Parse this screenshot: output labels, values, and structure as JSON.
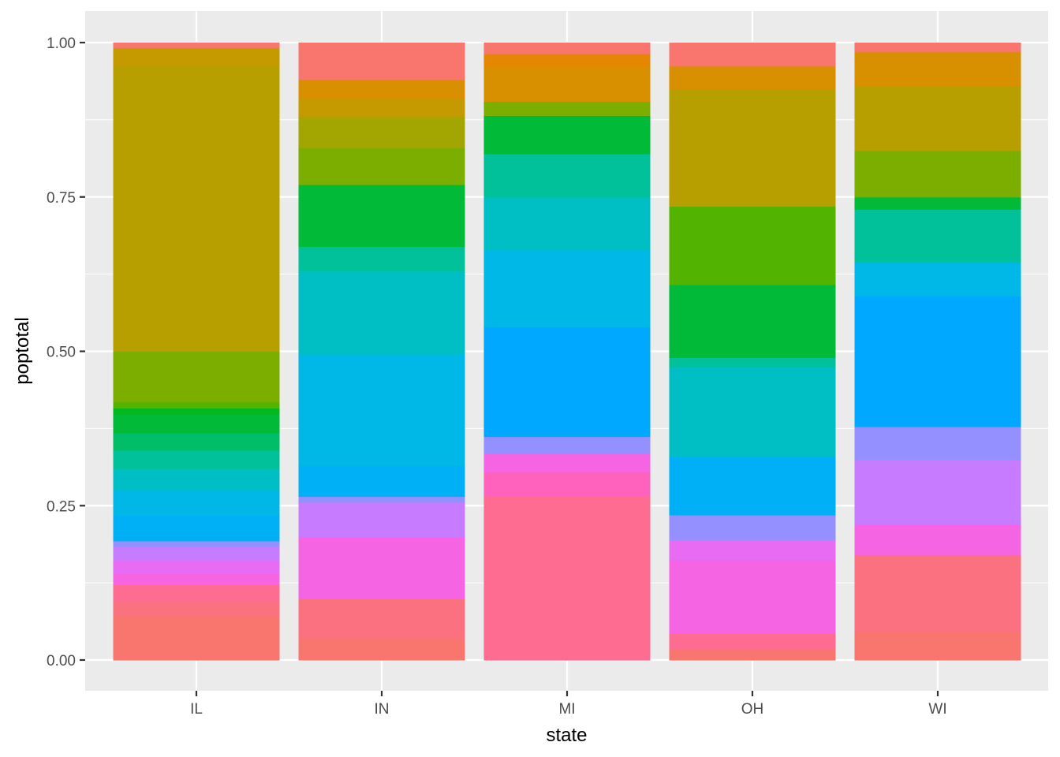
{
  "chart_data": {
    "type": "bar",
    "stacked": "fill",
    "xlabel": "state",
    "ylabel": "poptotal",
    "ylim": [
      0,
      1
    ],
    "y_ticks": [
      "0.00",
      "0.25",
      "0.50",
      "0.75",
      "1.00"
    ],
    "y_tick_values": [
      0,
      0.25,
      0.5,
      0.75,
      1
    ],
    "categories": [
      "IL",
      "IN",
      "MI",
      "OH",
      "WI"
    ],
    "grid": true,
    "legend": "none",
    "colors": {
      "panel": "#ebebeb",
      "grid": "#ffffff",
      "tick_text": "#4d4d4d",
      "axis_title": "#000000"
    },
    "stacks": [
      {
        "category": "IL",
        "segments": [
          {
            "y0": 0.0,
            "y1": 0.03,
            "color": "#f8766d"
          },
          {
            "y0": 0.03,
            "y1": 0.072,
            "color": "#f8766d"
          },
          {
            "y0": 0.072,
            "y1": 0.095,
            "color": "#fc717f"
          },
          {
            "y0": 0.095,
            "y1": 0.122,
            "color": "#ff6c91"
          },
          {
            "y0": 0.122,
            "y1": 0.14,
            "color": "#f564e3"
          },
          {
            "y0": 0.14,
            "y1": 0.162,
            "color": "#e76bf3"
          },
          {
            "y0": 0.162,
            "y1": 0.184,
            "color": "#c77cff"
          },
          {
            "y0": 0.184,
            "y1": 0.193,
            "color": "#9590ff"
          },
          {
            "y0": 0.193,
            "y1": 0.235,
            "color": "#00b0f6"
          },
          {
            "y0": 0.235,
            "y1": 0.275,
            "color": "#00b8e7"
          },
          {
            "y0": 0.275,
            "y1": 0.31,
            "color": "#00bfc4"
          },
          {
            "y0": 0.31,
            "y1": 0.34,
            "color": "#00c19a"
          },
          {
            "y0": 0.34,
            "y1": 0.368,
            "color": "#00be67"
          },
          {
            "y0": 0.368,
            "y1": 0.398,
            "color": "#00ba38"
          },
          {
            "y0": 0.398,
            "y1": 0.408,
            "color": "#00b81f"
          },
          {
            "y0": 0.408,
            "y1": 0.418,
            "color": "#53b400"
          },
          {
            "y0": 0.418,
            "y1": 0.5,
            "color": "#7cae00"
          },
          {
            "y0": 0.5,
            "y1": 0.962,
            "color": "#b79f00"
          },
          {
            "y0": 0.962,
            "y1": 0.992,
            "color": "#c49a00"
          },
          {
            "y0": 0.992,
            "y1": 1.0,
            "color": "#f8766d"
          }
        ]
      },
      {
        "category": "IN",
        "segments": [
          {
            "y0": 0.0,
            "y1": 0.035,
            "color": "#f8766d"
          },
          {
            "y0": 0.035,
            "y1": 0.1,
            "color": "#fc717f"
          },
          {
            "y0": 0.1,
            "y1": 0.2,
            "color": "#f564e3"
          },
          {
            "y0": 0.2,
            "y1": 0.255,
            "color": "#c77cff"
          },
          {
            "y0": 0.255,
            "y1": 0.265,
            "color": "#9590ff"
          },
          {
            "y0": 0.265,
            "y1": 0.315,
            "color": "#00b0f6"
          },
          {
            "y0": 0.315,
            "y1": 0.495,
            "color": "#00b8e7"
          },
          {
            "y0": 0.495,
            "y1": 0.63,
            "color": "#00bfc4"
          },
          {
            "y0": 0.63,
            "y1": 0.67,
            "color": "#00c19a"
          },
          {
            "y0": 0.67,
            "y1": 0.77,
            "color": "#00ba38"
          },
          {
            "y0": 0.77,
            "y1": 0.83,
            "color": "#7cae00"
          },
          {
            "y0": 0.83,
            "y1": 0.88,
            "color": "#a3a500"
          },
          {
            "y0": 0.88,
            "y1": 0.91,
            "color": "#c49a00"
          },
          {
            "y0": 0.91,
            "y1": 0.94,
            "color": "#d89000"
          },
          {
            "y0": 0.94,
            "y1": 1.0,
            "color": "#f8766d"
          }
        ]
      },
      {
        "category": "MI",
        "segments": [
          {
            "y0": 0.0,
            "y1": 0.265,
            "color": "#ff6c91"
          },
          {
            "y0": 0.265,
            "y1": 0.305,
            "color": "#ff62bc"
          },
          {
            "y0": 0.305,
            "y1": 0.335,
            "color": "#f564e3"
          },
          {
            "y0": 0.335,
            "y1": 0.362,
            "color": "#9590ff"
          },
          {
            "y0": 0.362,
            "y1": 0.54,
            "color": "#00a9ff"
          },
          {
            "y0": 0.54,
            "y1": 0.665,
            "color": "#00b8e7"
          },
          {
            "y0": 0.665,
            "y1": 0.75,
            "color": "#00bfc4"
          },
          {
            "y0": 0.75,
            "y1": 0.82,
            "color": "#00c19a"
          },
          {
            "y0": 0.82,
            "y1": 0.882,
            "color": "#00ba38"
          },
          {
            "y0": 0.882,
            "y1": 0.905,
            "color": "#7cae00"
          },
          {
            "y0": 0.905,
            "y1": 0.96,
            "color": "#d89000"
          },
          {
            "y0": 0.96,
            "y1": 0.982,
            "color": "#e58700"
          },
          {
            "y0": 0.982,
            "y1": 1.0,
            "color": "#f8766d"
          }
        ]
      },
      {
        "category": "OH",
        "segments": [
          {
            "y0": 0.0,
            "y1": 0.018,
            "color": "#f8766d"
          },
          {
            "y0": 0.018,
            "y1": 0.043,
            "color": "#ff6c91"
          },
          {
            "y0": 0.043,
            "y1": 0.162,
            "color": "#f564e3"
          },
          {
            "y0": 0.162,
            "y1": 0.195,
            "color": "#e76bf3"
          },
          {
            "y0": 0.195,
            "y1": 0.235,
            "color": "#9590ff"
          },
          {
            "y0": 0.235,
            "y1": 0.33,
            "color": "#00b0f6"
          },
          {
            "y0": 0.33,
            "y1": 0.475,
            "color": "#00bfc4"
          },
          {
            "y0": 0.475,
            "y1": 0.49,
            "color": "#00c19a"
          },
          {
            "y0": 0.49,
            "y1": 0.608,
            "color": "#00ba38"
          },
          {
            "y0": 0.608,
            "y1": 0.735,
            "color": "#53b400"
          },
          {
            "y0": 0.735,
            "y1": 0.925,
            "color": "#b79f00"
          },
          {
            "y0": 0.925,
            "y1": 0.962,
            "color": "#d89000"
          },
          {
            "y0": 0.962,
            "y1": 1.0,
            "color": "#f8766d"
          }
        ]
      },
      {
        "category": "WI",
        "segments": [
          {
            "y0": 0.0,
            "y1": 0.045,
            "color": "#f8766d"
          },
          {
            "y0": 0.045,
            "y1": 0.17,
            "color": "#fc717f"
          },
          {
            "y0": 0.17,
            "y1": 0.22,
            "color": "#f564e3"
          },
          {
            "y0": 0.22,
            "y1": 0.325,
            "color": "#c77cff"
          },
          {
            "y0": 0.325,
            "y1": 0.378,
            "color": "#9590ff"
          },
          {
            "y0": 0.378,
            "y1": 0.59,
            "color": "#00a9ff"
          },
          {
            "y0": 0.59,
            "y1": 0.645,
            "color": "#00b8e7"
          },
          {
            "y0": 0.645,
            "y1": 0.73,
            "color": "#00c19a"
          },
          {
            "y0": 0.73,
            "y1": 0.75,
            "color": "#00ba38"
          },
          {
            "y0": 0.75,
            "y1": 0.825,
            "color": "#7cae00"
          },
          {
            "y0": 0.825,
            "y1": 0.93,
            "color": "#b79f00"
          },
          {
            "y0": 0.93,
            "y1": 0.985,
            "color": "#d89000"
          },
          {
            "y0": 0.985,
            "y1": 1.0,
            "color": "#f8766d"
          }
        ]
      }
    ]
  }
}
